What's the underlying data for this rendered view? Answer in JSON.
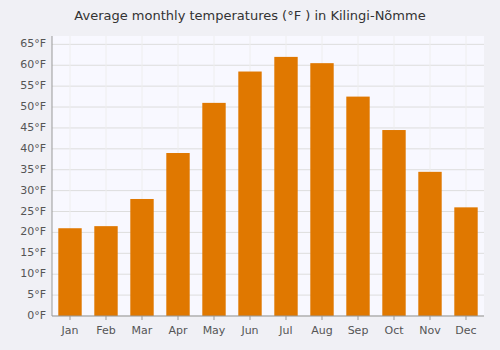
{
  "chart_data": {
    "type": "bar",
    "title": "Average monthly temperatures (°F ) in Kilingi-Nõmme",
    "categories": [
      "Jan",
      "Feb",
      "Mar",
      "Apr",
      "May",
      "Jun",
      "Jul",
      "Aug",
      "Sep",
      "Oct",
      "Nov",
      "Dec"
    ],
    "values": [
      21,
      21.5,
      28,
      39,
      51,
      58.5,
      62,
      60.5,
      52.5,
      44.5,
      34.5,
      26
    ],
    "color": "#E07800",
    "ylim": [
      0,
      67
    ],
    "yticks": [
      {
        "value": 0,
        "label": "0°F"
      },
      {
        "value": 5,
        "label": "5°F"
      },
      {
        "value": 10,
        "label": "10°F"
      },
      {
        "value": 15,
        "label": "15°F"
      },
      {
        "value": 20,
        "label": "20°F"
      },
      {
        "value": 25,
        "label": "25°F"
      },
      {
        "value": 30,
        "label": "30°F"
      },
      {
        "value": 35,
        "label": "35°F"
      },
      {
        "value": 40,
        "label": "40°F"
      },
      {
        "value": 45,
        "label": "45°F"
      },
      {
        "value": 50,
        "label": "50°F"
      },
      {
        "value": 55,
        "label": "55°F"
      },
      {
        "value": 60,
        "label": "60°F"
      },
      {
        "value": 65,
        "label": "65°F"
      }
    ],
    "grid": true
  }
}
